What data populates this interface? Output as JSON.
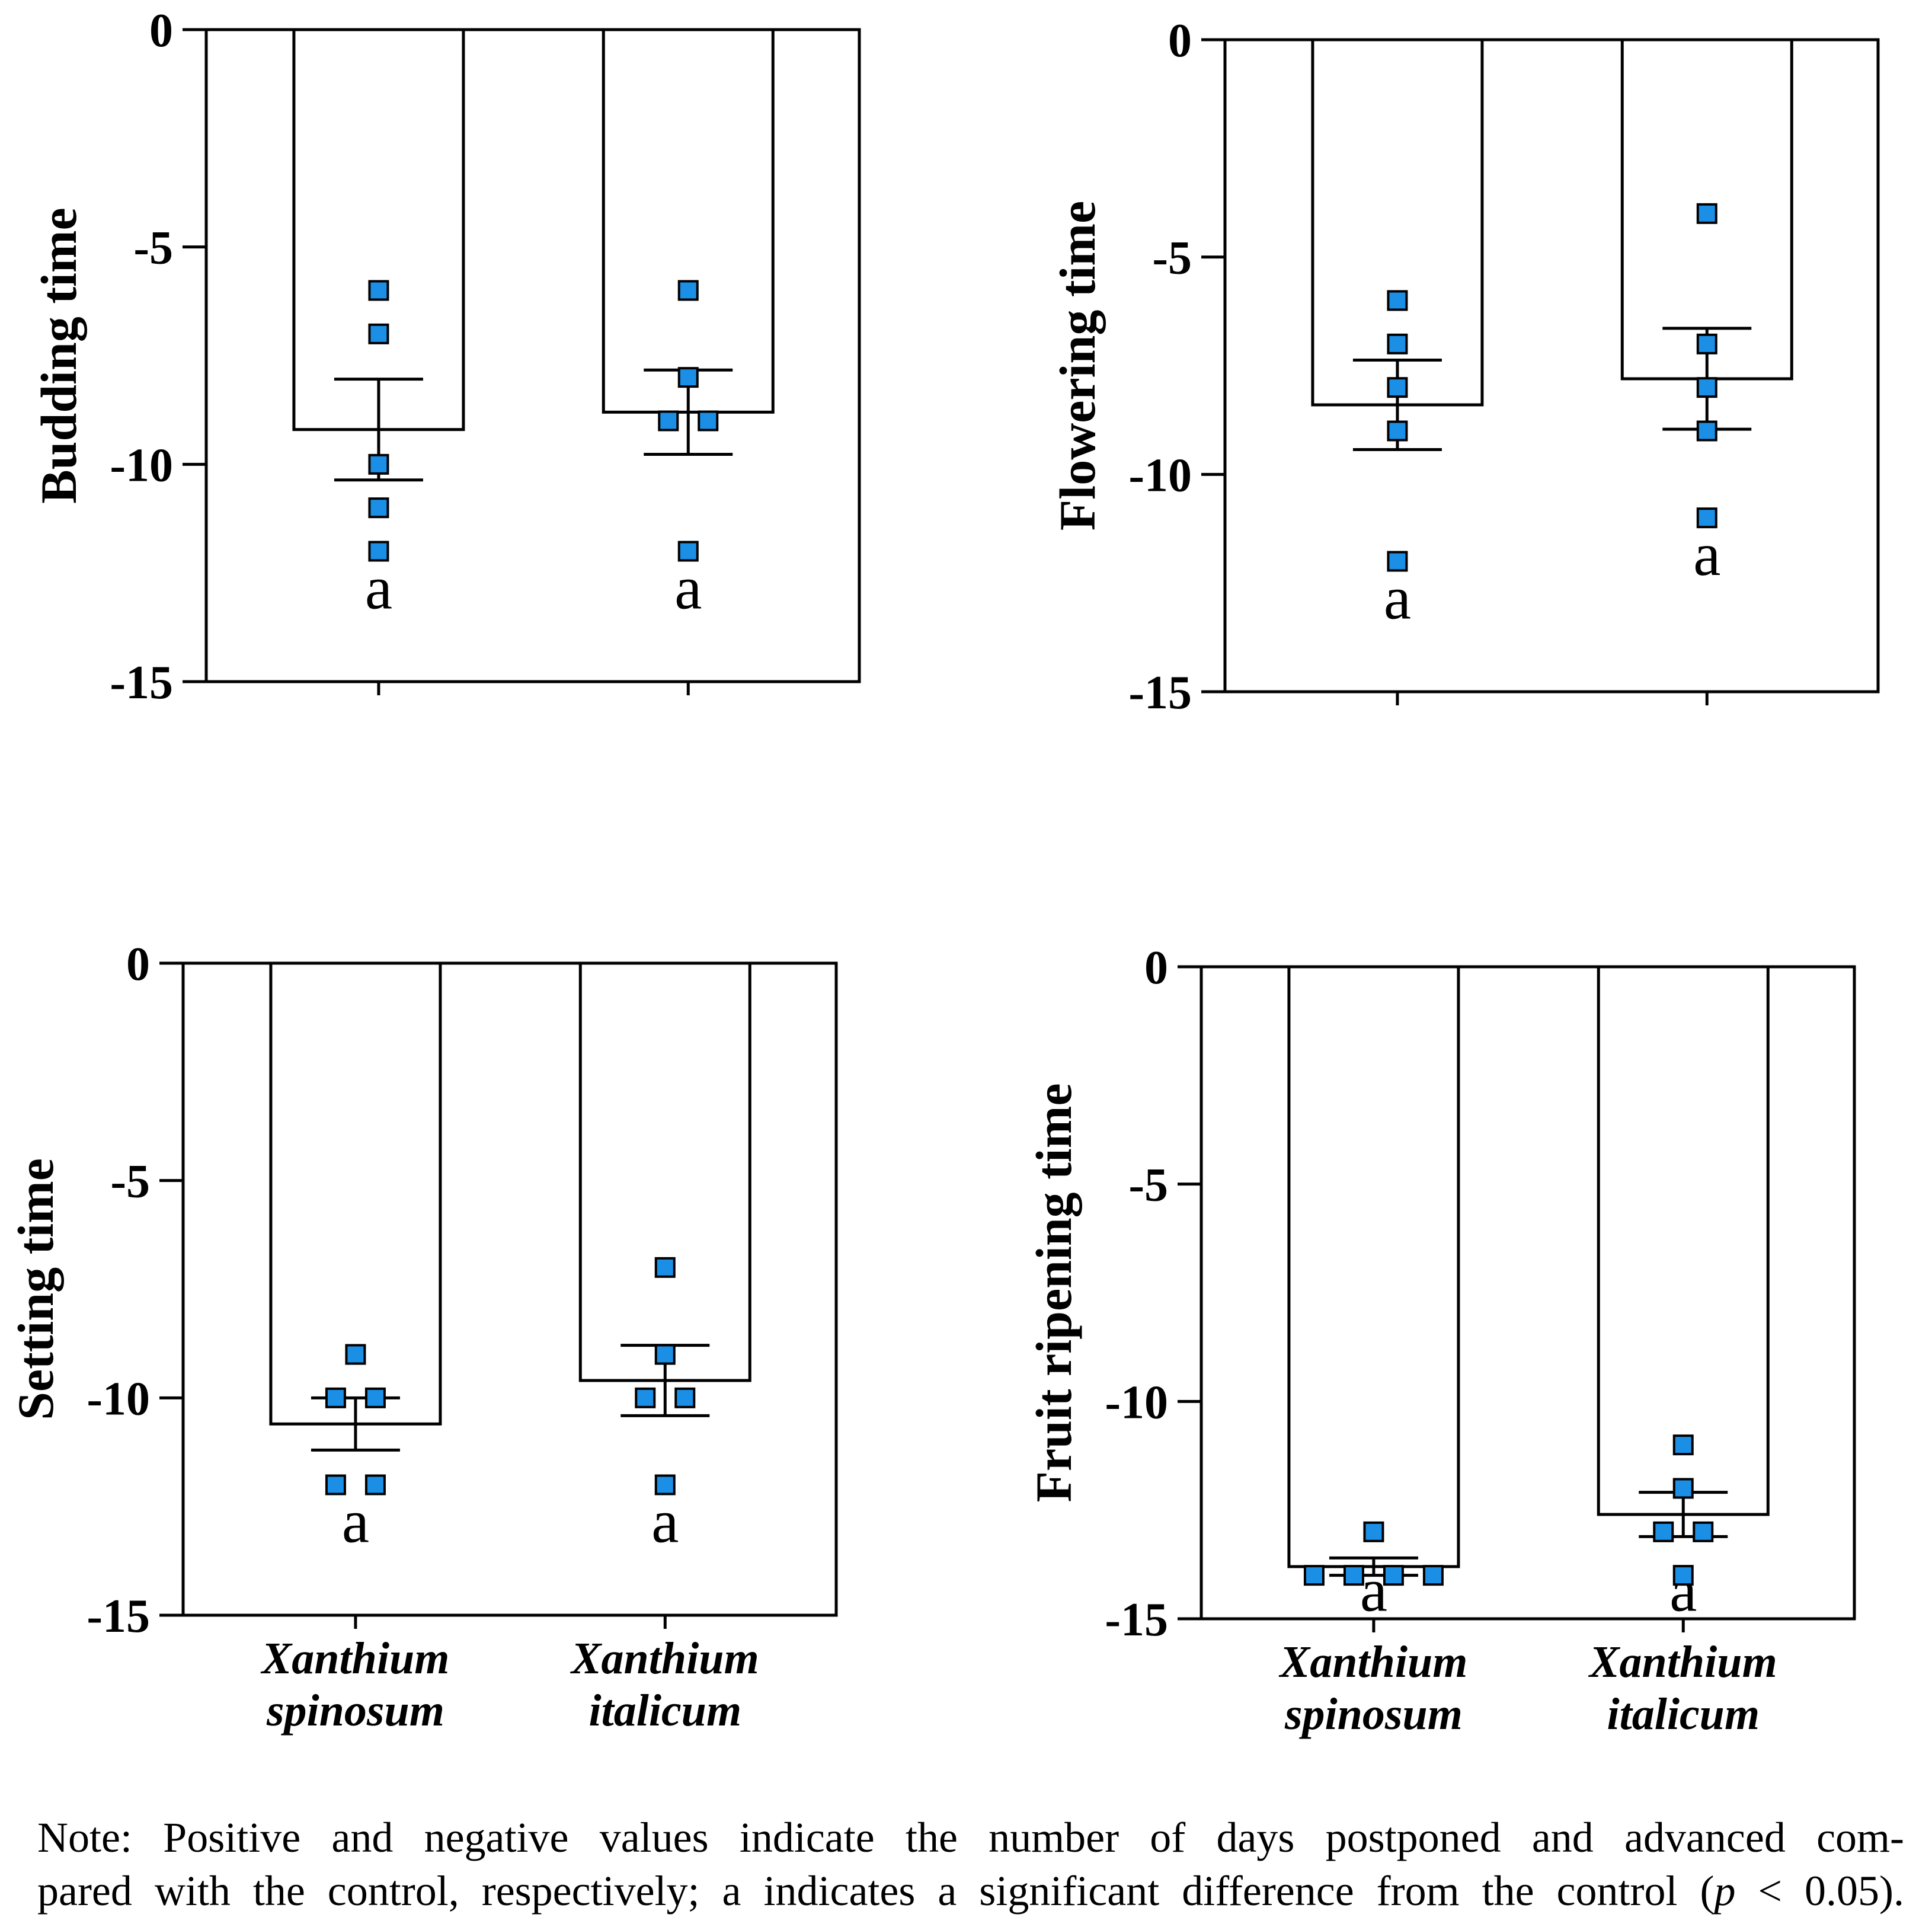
{
  "colors": {
    "marker_fill": "#1b8fe6",
    "marker_stroke": "#000000",
    "bar_fill": "#ffffff",
    "line": "#000000",
    "background": "#ffffff"
  },
  "chart_data": [
    {
      "type": "bar",
      "ylabel": "Budding time",
      "ylim": [
        -15,
        0
      ],
      "yticks": [
        0,
        -5,
        -10,
        -15
      ],
      "bars": [
        {
          "mean": -9.2,
          "sem": 1.16,
          "points": [
            -6,
            -7,
            -10,
            -11,
            -12
          ],
          "letter": "a"
        },
        {
          "mean": -8.8,
          "sem": 0.97,
          "points": [
            -6,
            -8,
            -9,
            -9,
            -12
          ],
          "letter": "a"
        }
      ]
    },
    {
      "type": "bar",
      "ylabel": "Flowering time",
      "ylim": [
        -15,
        0
      ],
      "yticks": [
        0,
        -5,
        -10,
        -15
      ],
      "bars": [
        {
          "mean": -8.4,
          "sem": 1.03,
          "points": [
            -6,
            -7,
            -8,
            -9,
            -12
          ],
          "letter": "a"
        },
        {
          "mean": -7.8,
          "sem": 1.16,
          "points": [
            -4,
            -7,
            -8,
            -9,
            -11
          ],
          "letter": "a"
        }
      ]
    },
    {
      "type": "bar",
      "ylabel": "Setting time",
      "ylim": [
        -15,
        0
      ],
      "yticks": [
        0,
        -5,
        -10,
        -15
      ],
      "categories": [
        [
          "Xanthium",
          "spinosum"
        ],
        [
          "Xanthium",
          "italicum"
        ]
      ],
      "bars": [
        {
          "mean": -10.6,
          "sem": 0.6,
          "points": [
            -9,
            -10,
            -10,
            -12,
            -12
          ],
          "letter": "a"
        },
        {
          "mean": -9.6,
          "sem": 0.81,
          "points": [
            -7,
            -9,
            -10,
            -10,
            -12
          ],
          "letter": "a"
        }
      ]
    },
    {
      "type": "bar",
      "ylabel": "Fruit ripening time",
      "ylim": [
        -15,
        0
      ],
      "yticks": [
        0,
        -5,
        -10,
        -15
      ],
      "categories": [
        [
          "Xanthium",
          "spinosum"
        ],
        [
          "Xanthium",
          "italicum"
        ]
      ],
      "bars": [
        {
          "mean": -13.8,
          "sem": 0.2,
          "points": [
            -13,
            -14,
            -14,
            -14,
            -14
          ],
          "letter": "a"
        },
        {
          "mean": -12.6,
          "sem": 0.51,
          "points": [
            -11,
            -12,
            -13,
            -13,
            -14
          ],
          "letter": "a"
        }
      ]
    }
  ],
  "note": {
    "line1": "Note: Positive and negative values indicate the number of days postponed and advanced com-",
    "line2_before": "pared with the control, respectively; a indicates a significant difference from the control (",
    "line2_italic": "p",
    "line2_after": " < 0.05)."
  }
}
